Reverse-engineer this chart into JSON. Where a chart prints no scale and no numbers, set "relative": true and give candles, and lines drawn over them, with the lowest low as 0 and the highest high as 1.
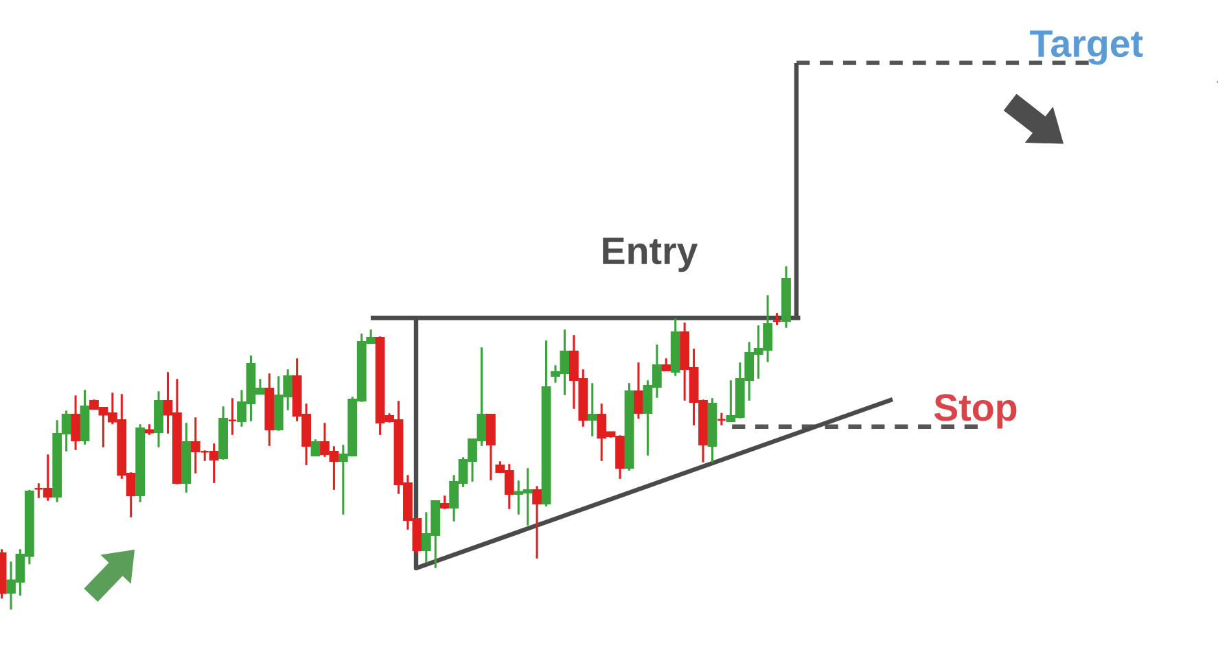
{
  "chart_data": {
    "type": "candlestick",
    "relative": true,
    "categories": [
      null,
      null,
      null,
      null,
      null,
      null,
      null,
      null,
      null,
      null,
      null,
      null,
      null,
      null,
      null,
      null,
      null,
      null,
      null,
      null,
      null,
      null,
      null,
      null,
      null,
      null,
      null,
      null,
      null,
      null,
      null,
      null,
      null,
      null,
      null,
      null,
      null,
      null,
      null,
      null,
      null,
      null,
      null,
      null,
      null,
      null,
      null,
      null,
      null,
      null,
      null,
      null,
      null,
      null,
      null,
      null,
      null,
      null,
      null,
      null,
      null,
      null,
      null,
      null,
      null,
      null,
      null,
      null,
      null,
      null,
      null,
      null,
      null,
      null,
      null,
      null,
      null,
      null,
      null,
      null,
      null,
      null,
      null,
      null,
      null,
      null
    ],
    "ohlc": [
      [
        0.164,
        0.176,
        0.032,
        0.048
      ],
      [
        0.049,
        0.14,
        0,
        0.085
      ],
      [
        0.081,
        0.176,
        0.041,
        0.16
      ],
      [
        0.156,
        0.349,
        0.132,
        0.344
      ],
      [
        0.352,
        0.368,
        0.325,
        0.352
      ],
      [
        0.352,
        0.452,
        0.317,
        0.329
      ],
      [
        0.329,
        0.552,
        0.313,
        0.512
      ],
      [
        0.513,
        0.58,
        0.461,
        0.568
      ],
      [
        0.568,
        0.624,
        0.465,
        0.493
      ],
      [
        0.493,
        0.64,
        0.481,
        0.592
      ],
      [
        0.608,
        0.612,
        0.585,
        0.585
      ],
      [
        0.588,
        0.588,
        0.473,
        0.568
      ],
      [
        0.572,
        0.632,
        0.54,
        0.548
      ],
      [
        0.552,
        0.628,
        0.381,
        0.393
      ],
      [
        0.396,
        0.4,
        0.269,
        0.333
      ],
      [
        0.333,
        0.54,
        0.313,
        0.528
      ],
      [
        0.523,
        0.54,
        0.509,
        0.516
      ],
      [
        0.517,
        0.636,
        0.473,
        0.608
      ],
      [
        0.608,
        0.692,
        0.513,
        0.568
      ],
      [
        0.572,
        0.672,
        0.365,
        0.369
      ],
      [
        0.369,
        0.544,
        0.341,
        0.488
      ],
      [
        0.488,
        0.56,
        0.397,
        0.461
      ],
      [
        0.46,
        0.464,
        0.433,
        0.46
      ],
      [
        0.46,
        0.484,
        0.369,
        0.437
      ],
      [
        0.441,
        0.592,
        0.437,
        0.556
      ],
      [
        0.551,
        0.616,
        0.509,
        0.551
      ],
      [
        0.549,
        0.64,
        0.533,
        0.604
      ],
      [
        0.601,
        0.74,
        0.549,
        0.716
      ],
      [
        0.629,
        0.672,
        0.629,
        0.644
      ],
      [
        0.644,
        0.688,
        0.477,
        0.525
      ],
      [
        0.525,
        0.68,
        0.521,
        0.624
      ],
      [
        0.621,
        0.7,
        0.581,
        0.68
      ],
      [
        0.68,
        0.732,
        0.549,
        0.565
      ],
      [
        0.568,
        0.6,
        0.421,
        0.477
      ],
      [
        0.449,
        0.496,
        0.449,
        0.488
      ],
      [
        0.488,
        0.544,
        0.445,
        0.453
      ],
      [
        0.46,
        0.476,
        0.349,
        0.433
      ],
      [
        0.433,
        0.48,
        0.277,
        0.452
      ],
      [
        0.449,
        0.62,
        0.449,
        0.612
      ],
      [
        0.609,
        0.804,
        0.605,
        0.78
      ],
      [
        0.777,
        0.816,
        0.777,
        0.792
      ],
      [
        0.792,
        0.796,
        0.509,
        0.545
      ],
      [
        0.564,
        0.572,
        0.545,
        0.549
      ],
      [
        0.552,
        0.608,
        0.337,
        0.365
      ],
      [
        0.368,
        0.392,
        0.233,
        0.261
      ],
      [
        0.264,
        0.268,
        0.164,
        0.173
      ],
      [
        0.173,
        0.284,
        0.136,
        0.22
      ],
      [
        0.217,
        0.316,
        0.121,
        0.316
      ],
      [
        0.308,
        0.332,
        0.293,
        0.297
      ],
      [
        0.297,
        0.392,
        0.257,
        0.372
      ],
      [
        0.369,
        0.444,
        0.357,
        0.436
      ],
      [
        0.433,
        0.496,
        0.373,
        0.496
      ],
      [
        0.493,
        0.764,
        0.477,
        0.568
      ],
      [
        0.568,
        0.568,
        0.377,
        0.481
      ],
      [
        0.42,
        0.432,
        0.401,
        0.401
      ],
      [
        0.404,
        0.424,
        0.293,
        0.337
      ],
      [
        0.337,
        0.376,
        0.277,
        0.343
      ],
      [
        0.341,
        0.412,
        0.245,
        0.348
      ],
      [
        0.348,
        0.36,
        0.149,
        0.309
      ],
      [
        0.309,
        0.784,
        0.301,
        0.648
      ],
      [
        0.681,
        0.712,
        0.661,
        0.692
      ],
      [
        0.689,
        0.816,
        0.625,
        0.752
      ],
      [
        0.752,
        0.8,
        0.585,
        0.669
      ],
      [
        0.672,
        0.7,
        0.533,
        0.553
      ],
      [
        0.553,
        0.66,
        0.505,
        0.568
      ],
      [
        0.568,
        0.6,
        0.433,
        0.501
      ],
      [
        0.517,
        0.517,
        0.501,
        0.505
      ],
      [
        0.504,
        0.508,
        0.381,
        0.413
      ],
      [
        0.413,
        0.66,
        0.405,
        0.636
      ],
      [
        0.636,
        0.72,
        0.556,
        0.573
      ],
      [
        0.573,
        0.668,
        0.449,
        0.652
      ],
      [
        0.649,
        0.772,
        0.617,
        0.712
      ],
      [
        0.712,
        0.732,
        0.697,
        0.697
      ],
      [
        0.693,
        0.848,
        0.681,
        0.808
      ],
      [
        0.808,
        0.836,
        0.609,
        0.701
      ],
      [
        0.704,
        0.76,
        0.537,
        0.605
      ],
      [
        0.608,
        0.612,
        0.429,
        0.481
      ],
      [
        0.477,
        0.616,
        0.429,
        0.6
      ],
      [
        0.553,
        0.573,
        0.537,
        0.553
      ],
      [
        0.549,
        0.668,
        0.549,
        0.564
      ],
      [
        0.561,
        0.72,
        0.557,
        0.672
      ],
      [
        0.669,
        0.78,
        0.609,
        0.748
      ],
      [
        0.745,
        0.828,
        0.673,
        0.76
      ],
      [
        0.757,
        0.916,
        0.721,
        0.832
      ],
      [
        0.841,
        0.864,
        0.829,
        0.841
      ],
      [
        0.841,
        1.0,
        0.821,
        0.964
      ]
    ],
    "colors": [
      "#e01f1f",
      "#3ba33b",
      "#3ba33b",
      "#3ba33b",
      "#e01f1f",
      "#e01f1f",
      "#3ba33b",
      "#3ba33b",
      "#e01f1f",
      "#3ba33b",
      "#e01f1f",
      "#e01f1f",
      "#e01f1f",
      "#e01f1f",
      "#e01f1f",
      "#3ba33b",
      "#e01f1f",
      "#3ba33b",
      "#e01f1f",
      "#e01f1f",
      "#3ba33b",
      "#e01f1f",
      "#e01f1f",
      "#e01f1f",
      "#3ba33b",
      "#e01f1f",
      "#3ba33b",
      "#3ba33b",
      "#3ba33b",
      "#e01f1f",
      "#3ba33b",
      "#3ba33b",
      "#e01f1f",
      "#e01f1f",
      "#3ba33b",
      "#e01f1f",
      "#e01f1f",
      "#3ba33b",
      "#3ba33b",
      "#3ba33b",
      "#3ba33b",
      "#e01f1f",
      "#e01f1f",
      "#e01f1f",
      "#e01f1f",
      "#e01f1f",
      "#3ba33b",
      "#3ba33b",
      "#e01f1f",
      "#3ba33b",
      "#3ba33b",
      "#3ba33b",
      "#3ba33b",
      "#e01f1f",
      "#e01f1f",
      "#e01f1f",
      "#3ba33b",
      "#3ba33b",
      "#e01f1f",
      "#3ba33b",
      "#3ba33b",
      "#3ba33b",
      "#e01f1f",
      "#e01f1f",
      "#3ba33b",
      "#e01f1f",
      "#e01f1f",
      "#e01f1f",
      "#3ba33b",
      "#e01f1f",
      "#3ba33b",
      "#3ba33b",
      "#e01f1f",
      "#3ba33b",
      "#e01f1f",
      "#e01f1f",
      "#e01f1f",
      "#3ba33b",
      "#e01f1f",
      "#3ba33b",
      "#3ba33b",
      "#3ba33b",
      "#3ba33b",
      "#3ba33b",
      "#e01f1f",
      "#3ba33b"
    ],
    "ref_lines": [
      {
        "axis": "y",
        "value": 1.593,
        "label": "Target",
        "color": "#555555",
        "line_style": "dashed"
      },
      {
        "axis": "y",
        "value": 0.533,
        "label": "Stop",
        "color": "#555555",
        "line_style": "dashed"
      },
      {
        "axis": "y",
        "value": 0.85,
        "color": "#4a4a4a",
        "line_style": "solid"
      }
    ],
    "annotations": [
      "Entry"
    ]
  }
}
